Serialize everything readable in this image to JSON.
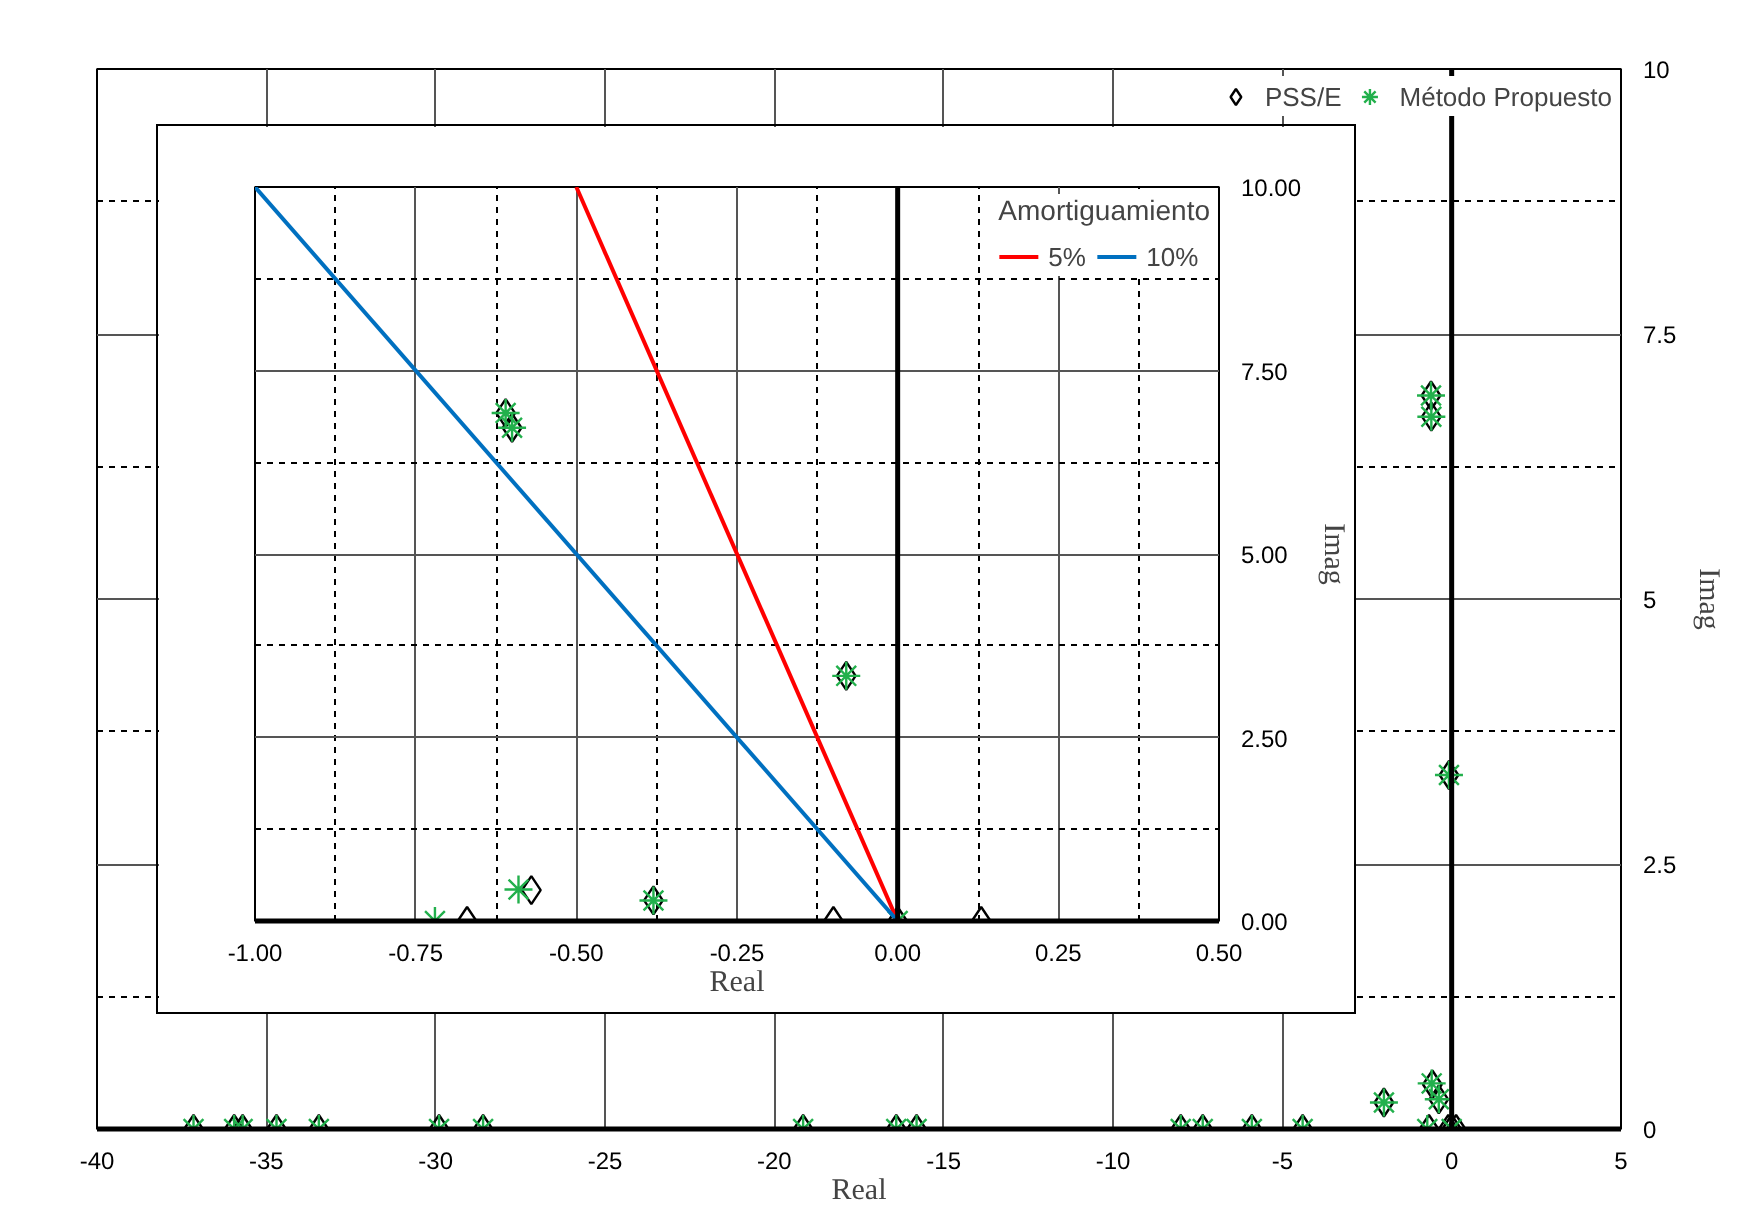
{
  "chart_data": [
    {
      "type": "scatter",
      "xlabel": "Real",
      "ylabel": "Imag",
      "xlim": [
        -40,
        5
      ],
      "ylim": [
        0,
        10
      ],
      "xticks": [
        -40,
        -35,
        -30,
        -25,
        -20,
        -15,
        -10,
        -5,
        0,
        5
      ],
      "yticks": [
        0,
        2.5,
        5,
        7.5,
        10
      ],
      "grid": true,
      "legend": "top right",
      "ref_lines": [
        {
          "axis": "x",
          "value": 0,
          "color": "#000000"
        }
      ],
      "series": [
        {
          "name": "PSS/E",
          "color": "#000000",
          "marker": "diamond",
          "x": [
            -37.15,
            -35.95,
            -35.7,
            -34.7,
            -33.45,
            -29.9,
            -28.6,
            -19.15,
            -16.4,
            -15.8,
            -8.0,
            -7.35,
            -5.9,
            -4.4,
            -2.0,
            -0.61,
            -0.6,
            -0.08,
            -0.57,
            -0.38,
            -0.67,
            -0.1,
            0,
            0.13
          ],
          "values": [
            0,
            0,
            0,
            0,
            0,
            0,
            0,
            0,
            0,
            0,
            0,
            0,
            0,
            0,
            0.25,
            6.92,
            6.72,
            3.34,
            0.42,
            0.28,
            0,
            0,
            0,
            0
          ]
        },
        {
          "name": "Método Propuesto",
          "color": "#22b04c",
          "marker": "cross",
          "x": [
            -37.15,
            -35.95,
            -35.7,
            -34.7,
            -33.45,
            -29.9,
            -28.6,
            -19.15,
            -16.4,
            -15.8,
            -8.0,
            -7.35,
            -5.9,
            -4.4,
            -2.0,
            -0.61,
            -0.6,
            -0.08,
            -0.59,
            -0.38,
            -0.72,
            0
          ],
          "values": [
            0,
            0,
            0,
            0,
            0,
            0,
            0,
            0,
            0,
            0,
            0,
            0,
            0,
            0,
            0.25,
            6.92,
            6.72,
            3.34,
            0.43,
            0.28,
            0,
            0
          ]
        }
      ]
    },
    {
      "type": "scatter",
      "xlabel": "Real",
      "ylabel": "Imag",
      "legend_title": "Amortiguamiento",
      "xlim": [
        -1,
        0.5
      ],
      "ylim": [
        0,
        10
      ],
      "xticks": [
        {
          "value": -1,
          "label": "-1.00"
        },
        {
          "value": -0.75,
          "label": "-0.75"
        },
        {
          "value": -0.5,
          "label": "-0.50"
        },
        {
          "value": -0.25,
          "label": "-0.25"
        },
        {
          "value": 0,
          "label": "0.00"
        },
        {
          "value": 0.25,
          "label": "0.25"
        },
        {
          "value": 0.5,
          "label": "0.50"
        }
      ],
      "yticks": [
        {
          "value": 0,
          "label": "0.00"
        },
        {
          "value": 2.5,
          "label": "2.50"
        },
        {
          "value": 5,
          "label": "5.00"
        },
        {
          "value": 7.5,
          "label": "7.50"
        },
        {
          "value": 10,
          "label": "10.00"
        }
      ],
      "grid": true,
      "legend": "top right",
      "ref_lines": [
        {
          "axis": "x",
          "value": 0,
          "color": "#000000"
        }
      ],
      "series": [
        {
          "color": "#000000",
          "marker": "diamond",
          "x": [
            -0.61,
            -0.6,
            -0.08,
            -0.57,
            -0.38,
            -0.67,
            -0.1,
            0,
            0.13
          ],
          "values": [
            6.92,
            6.72,
            3.34,
            0.42,
            0.28,
            0,
            0,
            0,
            0
          ]
        },
        {
          "color": "#22b04c",
          "marker": "cross",
          "x": [
            -0.61,
            -0.6,
            -0.08,
            -0.59,
            -0.38,
            -0.72,
            0
          ],
          "values": [
            6.92,
            6.72,
            3.34,
            0.43,
            0.28,
            0,
            0
          ]
        },
        {
          "name": "5%",
          "type": "line",
          "color": "#ff0000",
          "x": [
            0,
            -0.5
          ],
          "values": [
            0,
            10
          ]
        },
        {
          "name": "10%",
          "type": "line",
          "color": "#0070c0",
          "x": [
            0,
            -1
          ],
          "values": [
            0,
            10
          ]
        }
      ]
    }
  ]
}
